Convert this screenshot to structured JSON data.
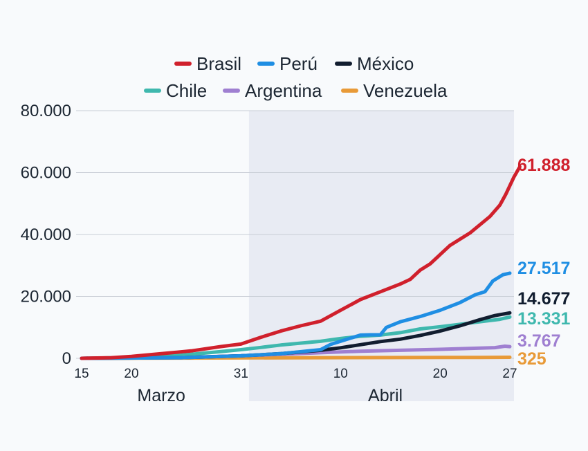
{
  "chart_data": {
    "type": "line",
    "title": "",
    "xlabel": "",
    "ylabel": "",
    "ylim": [
      0,
      80000
    ],
    "yticks": [
      0,
      20000,
      40000,
      60000,
      80000
    ],
    "ytick_labels": [
      "0",
      "20.000",
      "40.000",
      "60.000",
      "80.000"
    ],
    "xlim": [
      0,
      43
    ],
    "xticks": [
      {
        "x": 0,
        "label": "15"
      },
      {
        "x": 5,
        "label": "20"
      },
      {
        "x": 16,
        "label": "31"
      },
      {
        "x": 26,
        "label": "10"
      },
      {
        "x": 36,
        "label": "20"
      },
      {
        "x": 43,
        "label": "27"
      }
    ],
    "months": [
      {
        "label": "Marzo",
        "center": 8
      },
      {
        "label": "Abril",
        "center": 30.5
      }
    ],
    "shaded_region": {
      "from": 16.8,
      "to": 43.5
    },
    "x_meaning": "days since 15 Marzo",
    "series": [
      {
        "name": "Brasil",
        "color": "#d0202c",
        "end_label": "61.888",
        "points": [
          [
            0,
            0
          ],
          [
            3,
            200
          ],
          [
            5,
            600
          ],
          [
            8,
            1500
          ],
          [
            11,
            2400
          ],
          [
            14,
            3800
          ],
          [
            16,
            4600
          ],
          [
            18,
            6800
          ],
          [
            20,
            8800
          ],
          [
            22,
            10500
          ],
          [
            24,
            12000
          ],
          [
            26,
            15500
          ],
          [
            28,
            19000
          ],
          [
            30,
            21500
          ],
          [
            32,
            24000
          ],
          [
            33,
            25500
          ],
          [
            34,
            28500
          ],
          [
            35,
            30500
          ],
          [
            36,
            33500
          ],
          [
            37,
            36500
          ],
          [
            39,
            40500
          ],
          [
            41,
            45800
          ],
          [
            42,
            49500
          ],
          [
            42.6,
            53000
          ],
          [
            43.4,
            58500
          ],
          [
            44,
            61888
          ]
        ]
      },
      {
        "name": "Perú",
        "color": "#1f8ee3",
        "end_label": "27.517",
        "points": [
          [
            0,
            0
          ],
          [
            10,
            200
          ],
          [
            16,
            800
          ],
          [
            20,
            1500
          ],
          [
            24,
            2800
          ],
          [
            25,
            4500
          ],
          [
            27,
            6500
          ],
          [
            28,
            7500
          ],
          [
            29,
            7600
          ],
          [
            30,
            7600
          ],
          [
            30.6,
            10000
          ],
          [
            32,
            11800
          ],
          [
            34,
            13500
          ],
          [
            36,
            15500
          ],
          [
            38,
            18000
          ],
          [
            39.5,
            20500
          ],
          [
            40.5,
            21500
          ],
          [
            41.3,
            25000
          ],
          [
            42.3,
            27000
          ],
          [
            43,
            27517
          ]
        ]
      },
      {
        "name": "México",
        "color": "#111d2f",
        "end_label": "14.677",
        "points": [
          [
            0,
            0
          ],
          [
            10,
            200
          ],
          [
            16,
            800
          ],
          [
            20,
            1500
          ],
          [
            24,
            2600
          ],
          [
            26,
            3400
          ],
          [
            28,
            4400
          ],
          [
            30,
            5400
          ],
          [
            32,
            6200
          ],
          [
            34,
            7400
          ],
          [
            36,
            8800
          ],
          [
            38,
            10500
          ],
          [
            40,
            12500
          ],
          [
            41.5,
            13800
          ],
          [
            43,
            14677
          ]
        ]
      },
      {
        "name": "Chile",
        "color": "#3fb8ae",
        "end_label": "13.331",
        "points": [
          [
            0,
            0
          ],
          [
            5,
            300
          ],
          [
            10,
            1000
          ],
          [
            14,
            2200
          ],
          [
            16,
            2800
          ],
          [
            18,
            3500
          ],
          [
            20,
            4300
          ],
          [
            24,
            5500
          ],
          [
            26,
            6400
          ],
          [
            28,
            7100
          ],
          [
            30,
            7500
          ],
          [
            32,
            8300
          ],
          [
            34,
            9500
          ],
          [
            36,
            10200
          ],
          [
            38,
            11000
          ],
          [
            40,
            11800
          ],
          [
            42,
            12600
          ],
          [
            43,
            13331
          ]
        ]
      },
      {
        "name": "Argentina",
        "color": "#9f7fd1",
        "end_label": "3.767",
        "points": [
          [
            0,
            0
          ],
          [
            10,
            300
          ],
          [
            16,
            800
          ],
          [
            20,
            1300
          ],
          [
            24,
            1800
          ],
          [
            28,
            2300
          ],
          [
            32,
            2600
          ],
          [
            36,
            2900
          ],
          [
            40,
            3300
          ],
          [
            41.5,
            3450
          ],
          [
            42.5,
            3900
          ],
          [
            43,
            3767
          ]
        ]
      },
      {
        "name": "Venezuela",
        "color": "#e89a38",
        "end_label": "325",
        "points": [
          [
            0,
            0
          ],
          [
            10,
            80
          ],
          [
            16,
            140
          ],
          [
            24,
            190
          ],
          [
            32,
            250
          ],
          [
            40,
            300
          ],
          [
            43,
            325
          ]
        ]
      }
    ]
  }
}
